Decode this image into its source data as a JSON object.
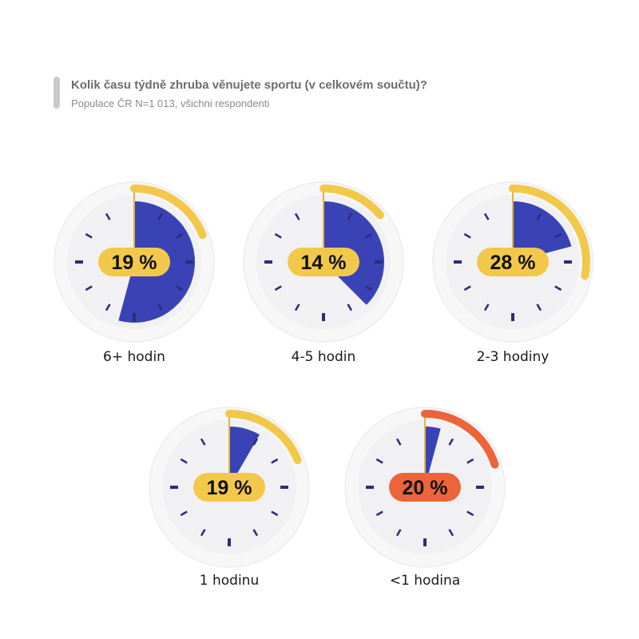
{
  "header": {
    "title": "Kolik času týdně zhruba věnujete sportu (v celkovém součtu)?",
    "subtitle": "Populace ČR N=1 013, všichni respondenti"
  },
  "colors": {
    "ring_default": "#f2c84b",
    "ring_highlight": "#ec6439",
    "wedge": "#3a43b5",
    "face": "#f1f1f3",
    "bezel": "#f7f7f8",
    "tick": "#2f2a7a",
    "hand": "#e0b43a"
  },
  "chart_data": {
    "type": "pie",
    "title": "Kolik času týdně zhruba věnujete sportu (v celkovém součtu)?",
    "subtitle": "Populace ČR N=1 013, všichni respondenti",
    "categories": [
      "6+ hodin",
      "4-5 hodin",
      "2-3 hodiny",
      "1 hodinu",
      "<1 hodina"
    ],
    "values": [
      19,
      14,
      28,
      19,
      20
    ],
    "value_labels": [
      "19 %",
      "14 %",
      "28 %",
      "19 %",
      "20 %"
    ],
    "wedge_hours": [
      6.5,
      4.5,
      2.5,
      1,
      0.5
    ],
    "highlighted": "<1 hodina",
    "unit": "%"
  }
}
